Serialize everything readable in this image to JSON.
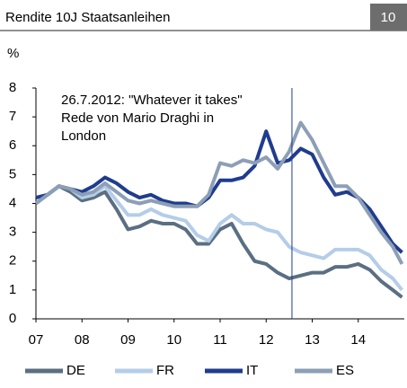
{
  "chart_data": {
    "type": "line",
    "title": "Rendite 10J Staatsanleihen",
    "badge": "10",
    "y_label": "%",
    "annotation": [
      "26.7.2012: \"Whatever it takes\"",
      "Rede von Mario Draghi in",
      "London"
    ],
    "marker_x": 2012.56,
    "x": [
      2007,
      2007.25,
      2007.5,
      2007.75,
      2008,
      2008.25,
      2008.5,
      2008.75,
      2009,
      2009.25,
      2009.5,
      2009.75,
      2010,
      2010.25,
      2010.5,
      2010.75,
      2011,
      2011.25,
      2011.5,
      2011.75,
      2012,
      2012.25,
      2012.5,
      2012.75,
      2013,
      2013.25,
      2013.5,
      2013.75,
      2014,
      2014.25,
      2014.5,
      2014.75,
      2014.95
    ],
    "series": [
      {
        "name": "DE",
        "color": "#5b6f82",
        "values": [
          4.0,
          4.3,
          4.6,
          4.4,
          4.1,
          4.2,
          4.4,
          3.8,
          3.1,
          3.2,
          3.4,
          3.3,
          3.3,
          3.1,
          2.6,
          2.6,
          3.1,
          3.3,
          2.6,
          2.0,
          1.9,
          1.6,
          1.4,
          1.5,
          1.6,
          1.6,
          1.8,
          1.8,
          1.9,
          1.7,
          1.3,
          1.0,
          0.75
        ]
      },
      {
        "name": "FR",
        "color": "#b4cde8",
        "values": [
          4.0,
          4.3,
          4.6,
          4.5,
          4.2,
          4.3,
          4.6,
          4.1,
          3.6,
          3.6,
          3.8,
          3.6,
          3.5,
          3.4,
          2.9,
          2.7,
          3.3,
          3.6,
          3.3,
          3.3,
          3.1,
          3.0,
          2.5,
          2.3,
          2.2,
          2.1,
          2.4,
          2.4,
          2.4,
          2.2,
          1.7,
          1.4,
          1.0
        ]
      },
      {
        "name": "IT",
        "color": "#1f3c8f",
        "values": [
          4.2,
          4.3,
          4.6,
          4.5,
          4.4,
          4.6,
          4.9,
          4.7,
          4.4,
          4.2,
          4.3,
          4.1,
          4.0,
          4.0,
          3.9,
          4.2,
          4.8,
          4.8,
          4.9,
          5.3,
          6.5,
          5.4,
          5.5,
          5.9,
          5.7,
          4.9,
          4.3,
          4.4,
          4.2,
          3.8,
          3.2,
          2.6,
          2.3
        ]
      },
      {
        "name": "ES",
        "color": "#8d9fb6",
        "values": [
          4.0,
          4.3,
          4.6,
          4.5,
          4.3,
          4.4,
          4.7,
          4.4,
          4.1,
          4.0,
          4.1,
          4.0,
          3.9,
          3.9,
          3.9,
          4.3,
          5.4,
          5.3,
          5.5,
          5.4,
          5.6,
          5.2,
          5.8,
          6.8,
          6.2,
          5.4,
          4.6,
          4.6,
          4.2,
          3.6,
          3.0,
          2.5,
          1.9
        ]
      }
    ],
    "xlim": [
      2007,
      2015
    ],
    "xticks": [
      {
        "value": 2007,
        "label": "07"
      },
      {
        "value": 2008,
        "label": "08"
      },
      {
        "value": 2009,
        "label": "09"
      },
      {
        "value": 2010,
        "label": "10"
      },
      {
        "value": 2011,
        "label": "11"
      },
      {
        "value": 2012,
        "label": "12"
      },
      {
        "value": 2013,
        "label": "13"
      },
      {
        "value": 2014,
        "label": "14"
      }
    ],
    "ylim": [
      0,
      8
    ],
    "yticks": [
      0,
      1,
      2,
      3,
      4,
      5,
      6,
      7,
      8
    ]
  }
}
